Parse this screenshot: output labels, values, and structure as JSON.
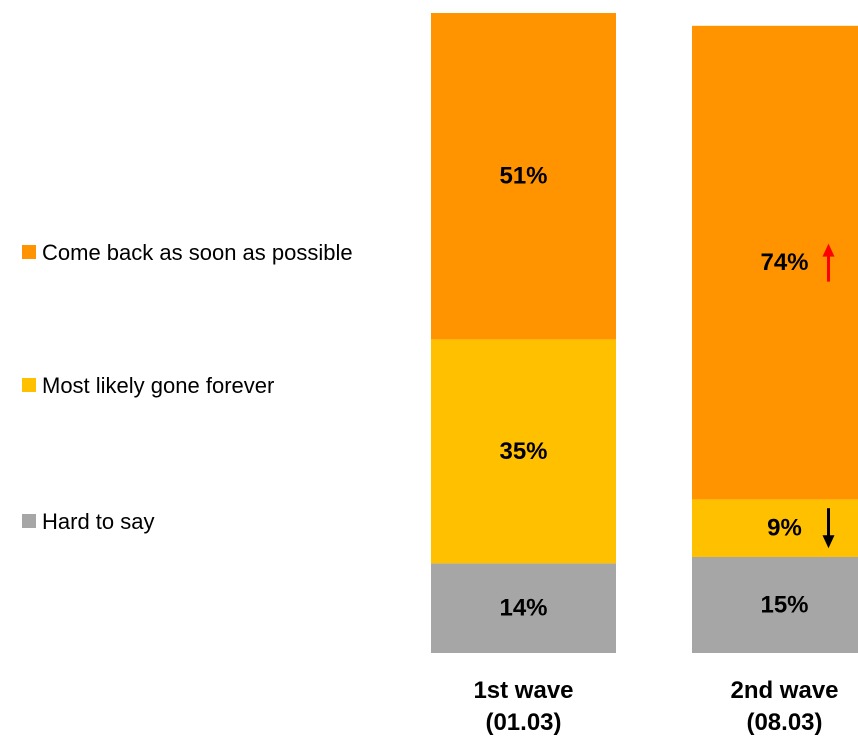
{
  "chart_data": {
    "type": "bar",
    "stacked": true,
    "percent_stacked": true,
    "categories": [
      [
        "1st wave",
        "(01.03)"
      ],
      [
        "2nd wave",
        "(08.03)"
      ]
    ],
    "series": [
      {
        "name": "Hard to say",
        "values": [
          14,
          15
        ],
        "labels": [
          "14%",
          "15%"
        ],
        "color": "#a6a6a6"
      },
      {
        "name": "Most likely gone forever",
        "values": [
          35,
          9
        ],
        "labels": [
          "35%",
          "9%"
        ],
        "color": "#ffc000"
      },
      {
        "name": "Come back as soon as possible",
        "values": [
          51,
          74
        ],
        "labels": [
          "51%",
          "74%"
        ],
        "color": "#ff9400"
      }
    ],
    "change_indicators": [
      {
        "category_index": 1,
        "series": "Come back as soon as possible",
        "direction": "up",
        "color": "#ff0000"
      },
      {
        "category_index": 1,
        "series": "Most likely gone forever",
        "direction": "down",
        "color": "#000000"
      }
    ],
    "legend": {
      "position": "left",
      "items": [
        {
          "label": "Come back as soon as possible",
          "color": "#ff9400"
        },
        {
          "label": "Most likely gone forever",
          "color": "#ffc000"
        },
        {
          "label": "Hard to say",
          "color": "#a6a6a6"
        }
      ]
    },
    "ylim": [
      0,
      100
    ],
    "grid": false
  }
}
